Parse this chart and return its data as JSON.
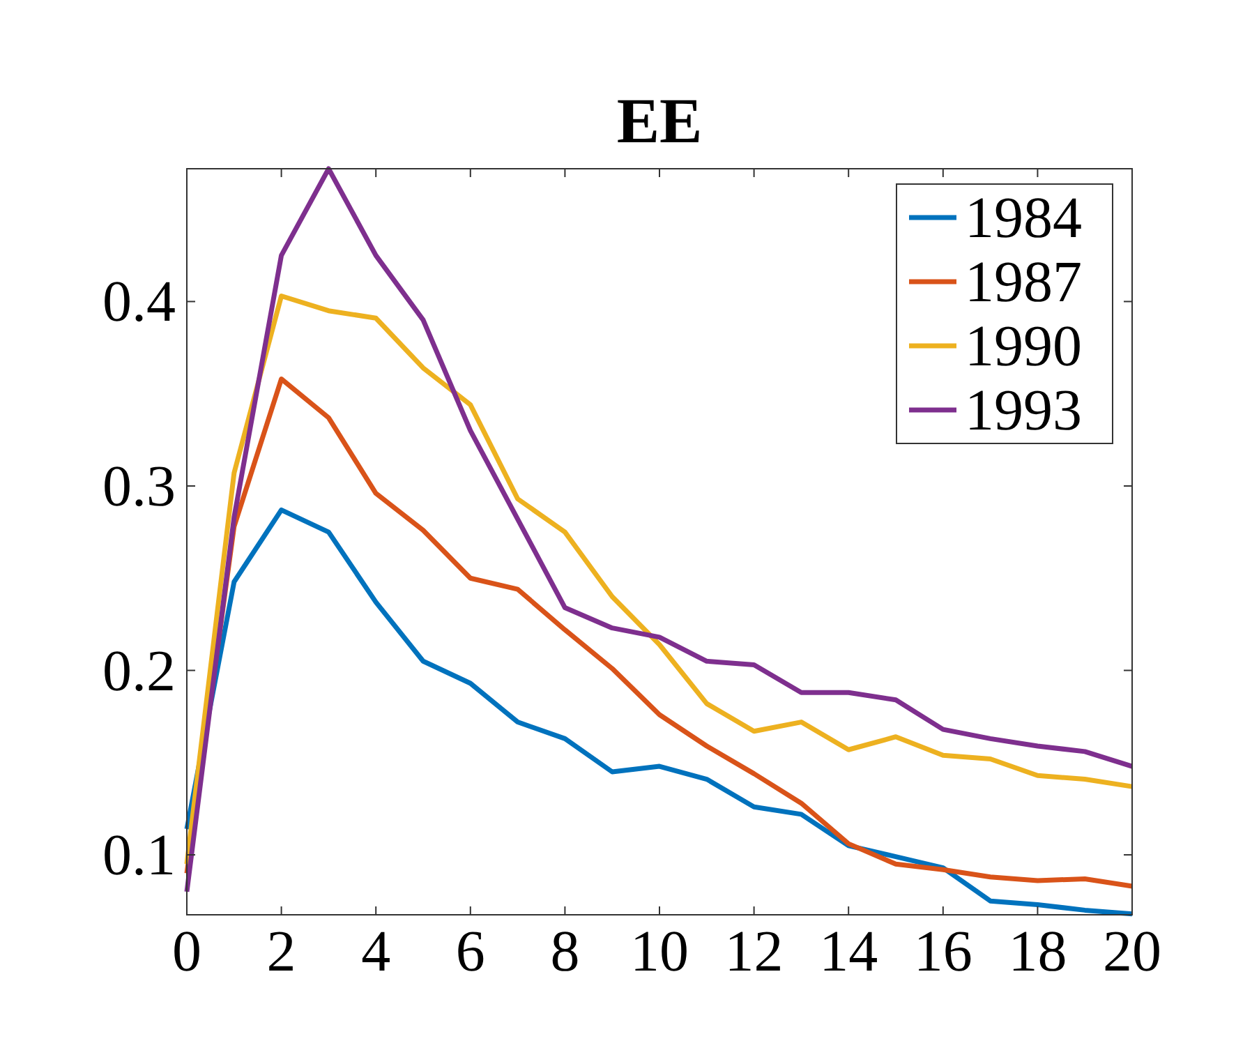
{
  "chart_data": {
    "type": "line",
    "title": "EE",
    "x": [
      0,
      1,
      2,
      3,
      4,
      5,
      6,
      7,
      8,
      9,
      10,
      11,
      12,
      13,
      14,
      15,
      16,
      17,
      18,
      19,
      20
    ],
    "xlim": [
      0,
      20
    ],
    "xticks": [
      0,
      2,
      4,
      6,
      8,
      10,
      12,
      14,
      16,
      18,
      20
    ],
    "ylim": [
      0.0675,
      0.472
    ],
    "yticks": [
      {
        "value": 0.1,
        "label": "0.1"
      },
      {
        "value": 0.2,
        "label": "0.2"
      },
      {
        "value": 0.3,
        "label": "0.3"
      },
      {
        "value": 0.4,
        "label": "0.4"
      }
    ],
    "grid": false,
    "legend": "top right",
    "line_style": "solid",
    "marker": "none",
    "series": [
      {
        "name": "1984",
        "color": "#0072bd",
        "values": [
          0.114,
          0.248,
          0.287,
          0.275,
          0.237,
          0.205,
          0.193,
          0.172,
          0.163,
          0.145,
          0.148,
          0.141,
          0.126,
          0.122,
          0.105,
          0.099,
          0.093,
          0.075,
          0.073,
          0.07,
          0.068
        ]
      },
      {
        "name": "1987",
        "color": "#d95319",
        "values": [
          0.09,
          0.278,
          0.358,
          0.337,
          0.296,
          0.276,
          0.25,
          0.244,
          0.222,
          0.201,
          0.176,
          0.159,
          0.144,
          0.128,
          0.106,
          0.095,
          0.092,
          0.088,
          0.086,
          0.087,
          0.083
        ]
      },
      {
        "name": "1990",
        "color": "#edb120",
        "values": [
          0.095,
          0.307,
          0.403,
          0.395,
          0.391,
          0.364,
          0.344,
          0.293,
          0.275,
          0.24,
          0.214,
          0.182,
          0.167,
          0.172,
          0.157,
          0.164,
          0.154,
          0.152,
          0.143,
          0.141,
          0.137
        ]
      },
      {
        "name": "1993",
        "color": "#7e2f8e",
        "values": [
          0.08,
          0.283,
          0.425,
          0.472,
          0.425,
          0.39,
          0.33,
          0.282,
          0.234,
          0.223,
          0.218,
          0.205,
          0.203,
          0.188,
          0.188,
          0.184,
          0.168,
          0.163,
          0.159,
          0.156,
          0.148
        ]
      }
    ]
  }
}
